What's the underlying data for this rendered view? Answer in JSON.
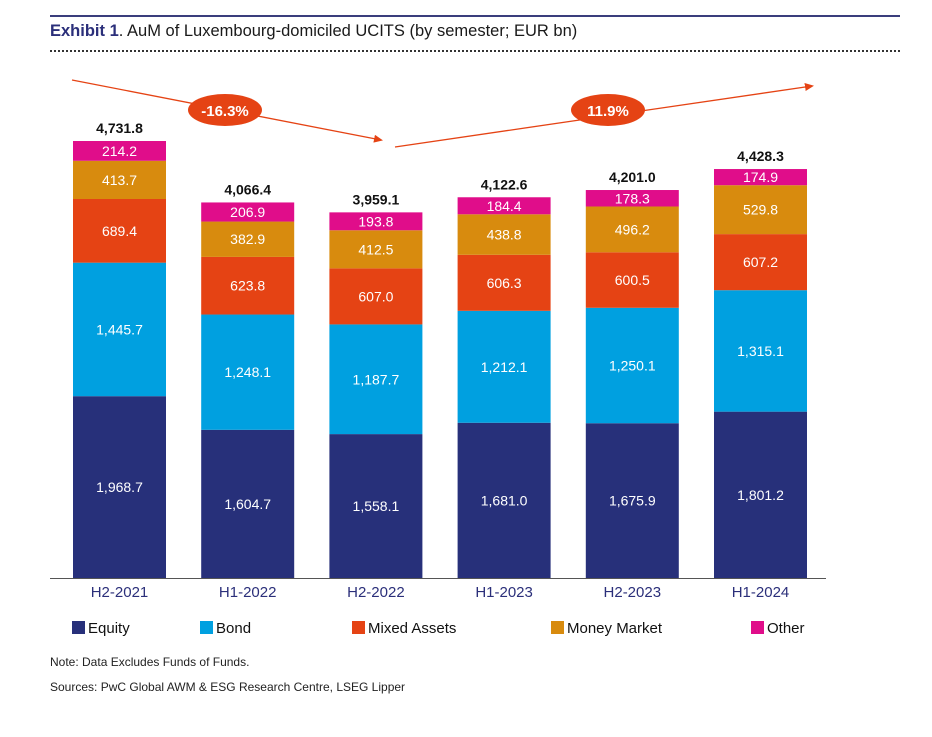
{
  "header": {
    "exhibit_label": "Exhibit 1",
    "title_rest": ". AuM of Luxembourg-domiciled UCITS (by semester; EUR bn)"
  },
  "notes": {
    "note": "Note: Data Excludes Funds of Funds.",
    "sources": "Sources: PwC Global AWM & ESG Research Centre, LSEG Lipper"
  },
  "chart_data": {
    "type": "bar",
    "stacked": true,
    "title": "Exhibit 1. AuM of Luxembourg-domiciled UCITS (by semester; EUR bn)",
    "xlabel": "",
    "ylabel": "EUR bn",
    "ylim": [
      0,
      4731.8
    ],
    "grid": false,
    "legend_position": "bottom",
    "categories": [
      "H2-2021",
      "H1-2022",
      "H2-2022",
      "H1-2023",
      "H2-2023",
      "H1-2024"
    ],
    "series": [
      {
        "name": "Equity",
        "color": "#27307a",
        "values": [
          1968.7,
          1604.7,
          1558.1,
          1681.0,
          1675.9,
          1801.2
        ],
        "labels": [
          "1,968.7",
          "1,604.7",
          "1,558.1",
          "1,681.0",
          "1,675.9",
          "1,801.2"
        ]
      },
      {
        "name": "Bond",
        "color": "#00a0e0",
        "values": [
          1445.7,
          1248.1,
          1187.7,
          1212.1,
          1250.1,
          1315.1
        ],
        "labels": [
          "1,445.7",
          "1,248.1",
          "1,187.7",
          "1,212.1",
          "1,250.1",
          "1,315.1"
        ]
      },
      {
        "name": "Mixed Assets",
        "color": "#e54314",
        "values": [
          689.4,
          623.8,
          607.0,
          606.3,
          600.5,
          607.2
        ],
        "labels": [
          "689.4",
          "623.8",
          "607.0",
          "606.3",
          "600.5",
          "607.2"
        ]
      },
      {
        "name": "Money Market",
        "color": "#d88b0e",
        "values": [
          413.7,
          382.9,
          412.5,
          438.8,
          496.2,
          529.8
        ],
        "labels": [
          "413.7",
          "382.9",
          "412.5",
          "438.8",
          "496.2",
          "529.8"
        ]
      },
      {
        "name": "Other",
        "color": "#e00d8a",
        "values": [
          214.2,
          206.9,
          193.8,
          184.4,
          178.3,
          174.9
        ],
        "labels": [
          "214.2",
          "206.9",
          "193.8",
          "184.4",
          "178.3",
          "174.9"
        ]
      }
    ],
    "totals": [
      4731.8,
      4066.4,
      3959.1,
      4122.6,
      4201.0,
      4428.3
    ],
    "total_labels": [
      "4,731.8",
      "4,066.4",
      "3,959.1",
      "4,122.6",
      "4,201.0",
      "4,428.3"
    ],
    "annotations": [
      {
        "text": "-16.3%",
        "from": "H2-2021",
        "to": "H2-2022",
        "direction": "down",
        "color": "#e54314"
      },
      {
        "text": "11.9%",
        "from": "H2-2022",
        "to": "H1-2024",
        "direction": "up",
        "color": "#e54314"
      }
    ]
  }
}
